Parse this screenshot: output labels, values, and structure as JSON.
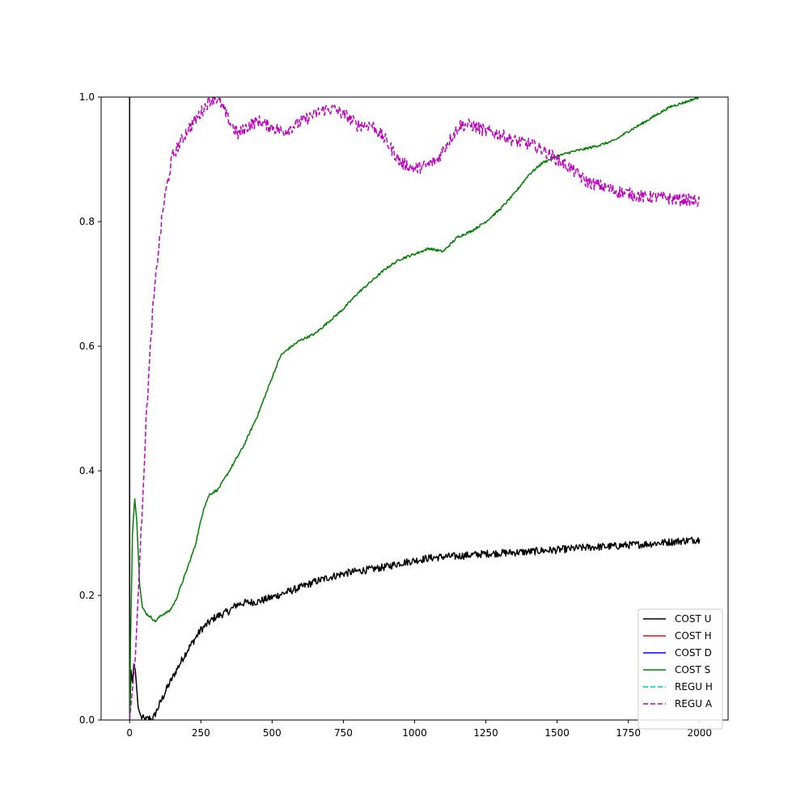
{
  "chart_data": {
    "type": "line",
    "title": "",
    "xlabel": "",
    "ylabel": "",
    "xlim": [
      -100,
      2100
    ],
    "ylim": [
      0,
      1.0
    ],
    "xticks": [
      0,
      250,
      500,
      750,
      1000,
      1250,
      1500,
      1750,
      2000
    ],
    "xtick_labels": [
      "0",
      "250",
      "500",
      "750",
      "1000",
      "1250",
      "1500",
      "1750",
      "2000"
    ],
    "yticks": [
      0.0,
      0.2,
      0.4,
      0.6,
      0.8,
      1.0
    ],
    "ytick_labels": [
      "0.0",
      "0.2",
      "0.4",
      "0.6",
      "0.8",
      "1.0"
    ],
    "grid": false,
    "legend_position": "lower-right",
    "series": [
      {
        "name": "COST U",
        "color": "#000000",
        "dash": "solid",
        "noise": 0.006,
        "points": [
          [
            0,
            1.0
          ],
          [
            0,
            0.0
          ],
          [
            5,
            0.08
          ],
          [
            10,
            0.06
          ],
          [
            15,
            0.09
          ],
          [
            20,
            0.08
          ],
          [
            25,
            0.05
          ],
          [
            30,
            0.02
          ],
          [
            40,
            0.005
          ],
          [
            55,
            0.0
          ],
          [
            70,
            0.003
          ],
          [
            80,
            0.0
          ],
          [
            100,
            0.02
          ],
          [
            130,
            0.05
          ],
          [
            170,
            0.085
          ],
          [
            200,
            0.11
          ],
          [
            250,
            0.145
          ],
          [
            300,
            0.165
          ],
          [
            350,
            0.175
          ],
          [
            375,
            0.185
          ],
          [
            400,
            0.188
          ],
          [
            450,
            0.19
          ],
          [
            500,
            0.197
          ],
          [
            550,
            0.205
          ],
          [
            600,
            0.213
          ],
          [
            650,
            0.222
          ],
          [
            700,
            0.229
          ],
          [
            750,
            0.235
          ],
          [
            800,
            0.239
          ],
          [
            850,
            0.242
          ],
          [
            900,
            0.246
          ],
          [
            950,
            0.252
          ],
          [
            1000,
            0.256
          ],
          [
            1050,
            0.26
          ],
          [
            1100,
            0.262
          ],
          [
            1150,
            0.263
          ],
          [
            1200,
            0.265
          ],
          [
            1250,
            0.267
          ],
          [
            1300,
            0.268
          ],
          [
            1350,
            0.269
          ],
          [
            1400,
            0.27
          ],
          [
            1450,
            0.272
          ],
          [
            1500,
            0.273
          ],
          [
            1550,
            0.275
          ],
          [
            1600,
            0.277
          ],
          [
            1650,
            0.278
          ],
          [
            1700,
            0.279
          ],
          [
            1750,
            0.281
          ],
          [
            1800,
            0.282
          ],
          [
            1850,
            0.284
          ],
          [
            1900,
            0.286
          ],
          [
            1950,
            0.288
          ],
          [
            2000,
            0.29
          ]
        ]
      },
      {
        "name": "COST H",
        "color": "#ff0000",
        "dash": "solid",
        "noise": 0,
        "points": []
      },
      {
        "name": "COST D",
        "color": "#0000ff",
        "dash": "solid",
        "noise": 0,
        "points": []
      },
      {
        "name": "COST S",
        "color": "#008000",
        "dash": "solid",
        "noise": 0.002,
        "points": [
          [
            0,
            0.0
          ],
          [
            3,
            0.12
          ],
          [
            10,
            0.3
          ],
          [
            18,
            0.355
          ],
          [
            25,
            0.32
          ],
          [
            35,
            0.22
          ],
          [
            45,
            0.18
          ],
          [
            60,
            0.17
          ],
          [
            75,
            0.165
          ],
          [
            90,
            0.158
          ],
          [
            110,
            0.168
          ],
          [
            140,
            0.175
          ],
          [
            160,
            0.19
          ],
          [
            180,
            0.215
          ],
          [
            200,
            0.24
          ],
          [
            230,
            0.28
          ],
          [
            260,
            0.34
          ],
          [
            280,
            0.362
          ],
          [
            310,
            0.37
          ],
          [
            350,
            0.4
          ],
          [
            400,
            0.44
          ],
          [
            450,
            0.49
          ],
          [
            500,
            0.55
          ],
          [
            530,
            0.585
          ],
          [
            560,
            0.597
          ],
          [
            600,
            0.61
          ],
          [
            650,
            0.62
          ],
          [
            700,
            0.64
          ],
          [
            750,
            0.66
          ],
          [
            800,
            0.685
          ],
          [
            850,
            0.705
          ],
          [
            900,
            0.725
          ],
          [
            950,
            0.74
          ],
          [
            1000,
            0.748
          ],
          [
            1050,
            0.757
          ],
          [
            1100,
            0.752
          ],
          [
            1150,
            0.775
          ],
          [
            1200,
            0.785
          ],
          [
            1250,
            0.8
          ],
          [
            1300,
            0.82
          ],
          [
            1350,
            0.845
          ],
          [
            1400,
            0.875
          ],
          [
            1450,
            0.895
          ],
          [
            1500,
            0.905
          ],
          [
            1550,
            0.912
          ],
          [
            1600,
            0.917
          ],
          [
            1650,
            0.923
          ],
          [
            1700,
            0.93
          ],
          [
            1750,
            0.945
          ],
          [
            1800,
            0.958
          ],
          [
            1850,
            0.972
          ],
          [
            1900,
            0.985
          ],
          [
            1950,
            0.992
          ],
          [
            2000,
            1.0
          ]
        ]
      },
      {
        "name": "REGU H",
        "color": "#00bfbf",
        "dash": "dashed",
        "noise": 0,
        "points": []
      },
      {
        "name": "REGU A",
        "color": "#bf00bf",
        "dash": "dashed",
        "noise": 0.01,
        "points": [
          [
            0,
            0.0
          ],
          [
            20,
            0.1
          ],
          [
            40,
            0.3
          ],
          [
            60,
            0.5
          ],
          [
            80,
            0.65
          ],
          [
            100,
            0.75
          ],
          [
            120,
            0.83
          ],
          [
            150,
            0.905
          ],
          [
            200,
            0.945
          ],
          [
            250,
            0.975
          ],
          [
            280,
            0.995
          ],
          [
            300,
            1.0
          ],
          [
            320,
            0.99
          ],
          [
            350,
            0.96
          ],
          [
            380,
            0.94
          ],
          [
            420,
            0.955
          ],
          [
            450,
            0.962
          ],
          [
            500,
            0.952
          ],
          [
            540,
            0.944
          ],
          [
            580,
            0.955
          ],
          [
            620,
            0.965
          ],
          [
            680,
            0.98
          ],
          [
            720,
            0.98
          ],
          [
            760,
            0.97
          ],
          [
            800,
            0.955
          ],
          [
            850,
            0.955
          ],
          [
            900,
            0.93
          ],
          [
            950,
            0.895
          ],
          [
            1000,
            0.885
          ],
          [
            1040,
            0.89
          ],
          [
            1080,
            0.9
          ],
          [
            1120,
            0.93
          ],
          [
            1160,
            0.955
          ],
          [
            1200,
            0.955
          ],
          [
            1250,
            0.945
          ],
          [
            1300,
            0.94
          ],
          [
            1350,
            0.93
          ],
          [
            1400,
            0.925
          ],
          [
            1450,
            0.915
          ],
          [
            1500,
            0.9
          ],
          [
            1550,
            0.885
          ],
          [
            1600,
            0.865
          ],
          [
            1650,
            0.858
          ],
          [
            1700,
            0.85
          ],
          [
            1750,
            0.845
          ],
          [
            1800,
            0.84
          ],
          [
            1850,
            0.84
          ],
          [
            1900,
            0.837
          ],
          [
            1950,
            0.835
          ],
          [
            2000,
            0.832
          ]
        ]
      }
    ]
  }
}
